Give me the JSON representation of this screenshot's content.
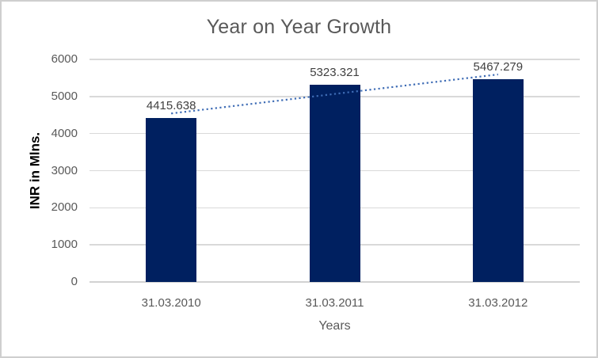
{
  "chart_data": {
    "type": "bar",
    "title": "Year on Year Growth",
    "categories": [
      "31.03.2010",
      "31.03.2011",
      "31.03.2012"
    ],
    "values": [
      4415.638,
      5323.321,
      5467.279
    ],
    "data_labels": [
      "4415.638",
      "5323.321",
      "5467.279"
    ],
    "xlabel": "Years",
    "ylabel": "INR in Mlns.",
    "ylim": [
      0,
      6000
    ],
    "yticks": [
      0,
      1000,
      2000,
      3000,
      4000,
      5000,
      6000
    ],
    "grid": true,
    "legend": "none",
    "trendline": {
      "type": "linear",
      "style": "dotted"
    },
    "colors": {
      "bar": "#002060",
      "trendline": "#3E6CB5",
      "grid": "#D9D9D9",
      "axis_line": "#D2D2D2",
      "border": "#CFCFCF",
      "background": "#FFFFFF",
      "title_text": "#595959",
      "tick_text": "#595959",
      "data_label_text": "#404040",
      "x_axis_title_text": "#595959",
      "y_axis_title_text": "#000000"
    }
  }
}
